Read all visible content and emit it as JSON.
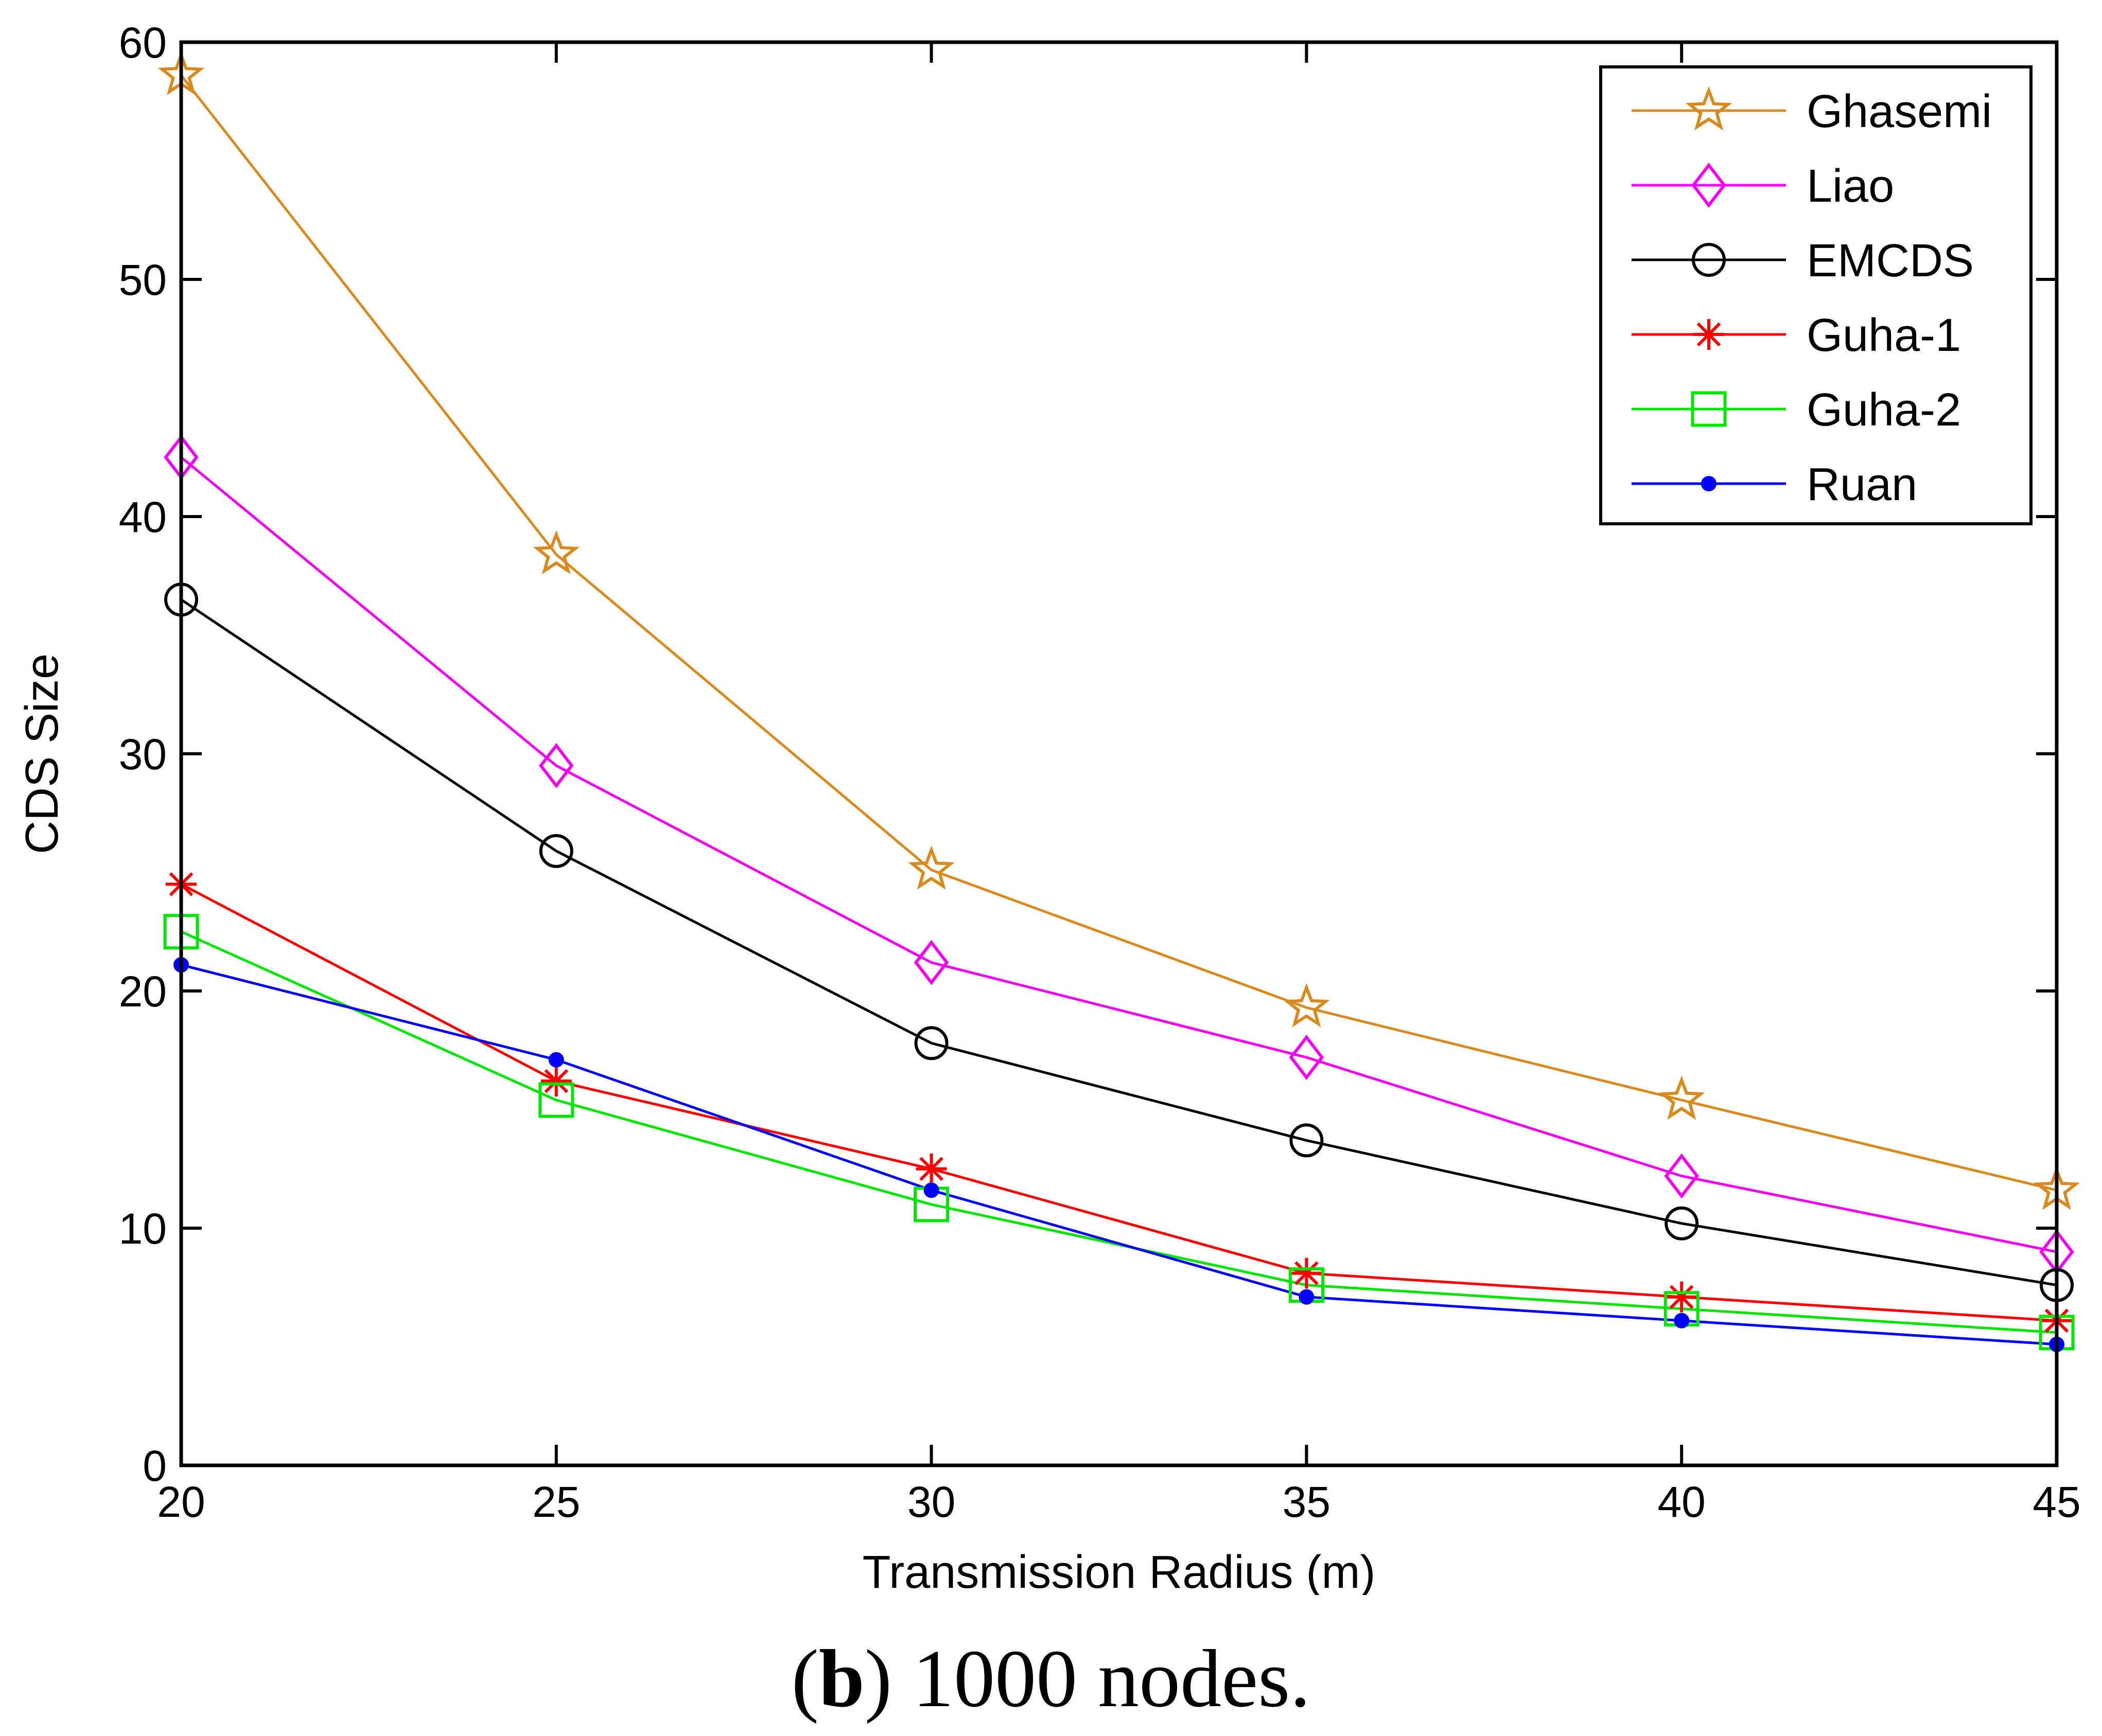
{
  "chart_data": {
    "type": "line",
    "title": "",
    "xlabel": "Transmission Radius (m)",
    "ylabel": "CDS Size",
    "x": [
      20,
      25,
      30,
      35,
      40,
      45
    ],
    "xlim": [
      20,
      45
    ],
    "ylim": [
      0,
      60
    ],
    "xticks": [
      "20",
      "25",
      "30",
      "35",
      "40",
      "45"
    ],
    "yticks": [
      "0",
      "10",
      "20",
      "30",
      "40",
      "50",
      "60"
    ],
    "legend_position": "top-right",
    "series": [
      {
        "name": "Ghasemi",
        "color": "#d98a1f",
        "marker": "star",
        "values": [
          58.6,
          38.4,
          25.1,
          19.3,
          15.4,
          11.6
        ]
      },
      {
        "name": "Liao",
        "color": "#f200f2",
        "marker": "diamond",
        "values": [
          42.5,
          29.5,
          21.2,
          17.2,
          12.2,
          9.0
        ]
      },
      {
        "name": "EMCDS",
        "color": "#000000",
        "marker": "circle",
        "values": [
          36.5,
          25.9,
          17.8,
          13.7,
          10.2,
          7.6
        ]
      },
      {
        "name": "Guha-1",
        "color": "#ff0000",
        "marker": "asterisk",
        "values": [
          24.5,
          16.2,
          12.5,
          8.1,
          7.1,
          6.1
        ]
      },
      {
        "name": "Guha-2",
        "color": "#00e400",
        "marker": "square",
        "values": [
          22.5,
          15.4,
          11.0,
          7.6,
          6.6,
          5.6
        ]
      },
      {
        "name": "Ruan",
        "color": "#0000ff",
        "marker": "point",
        "values": [
          21.1,
          17.1,
          11.6,
          7.1,
          6.1,
          5.1
        ]
      }
    ]
  },
  "caption": {
    "label": "b",
    "text": ") 1000 nodes."
  }
}
